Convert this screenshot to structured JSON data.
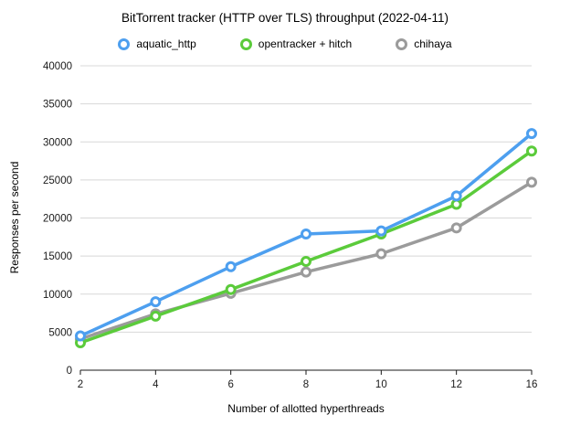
{
  "chart_data": {
    "type": "line",
    "title": "BitTorrent tracker (HTTP over TLS) throughput (2022-04-11)",
    "xlabel": "Number of allotted hyperthreads",
    "ylabel": "Responses per second",
    "categories": [
      2,
      4,
      6,
      8,
      10,
      12,
      16
    ],
    "series": [
      {
        "name": "aquatic_http",
        "color": "#4D9FEF",
        "values": [
          4500,
          9000,
          13600,
          17900,
          18300,
          22900,
          31100
        ]
      },
      {
        "name": "opentracker + hitch",
        "color": "#5BCB3B",
        "values": [
          3600,
          7100,
          10600,
          14300,
          17900,
          21800,
          28800
        ]
      },
      {
        "name": "chihaya",
        "color": "#9B9B9B",
        "values": [
          4100,
          7400,
          10100,
          12900,
          15300,
          18700,
          24700
        ]
      }
    ],
    "ylim": [
      0,
      40000
    ],
    "yticks": [
      0,
      5000,
      10000,
      15000,
      20000,
      25000,
      30000,
      35000,
      40000
    ],
    "grid": "horizontal",
    "legend_position": "top",
    "colors": {
      "gridline": "#d8d8d8",
      "axis_line": "#1a1a1a",
      "tick_label": "#1a1a1a",
      "marker_fill": "#ffffff"
    }
  }
}
